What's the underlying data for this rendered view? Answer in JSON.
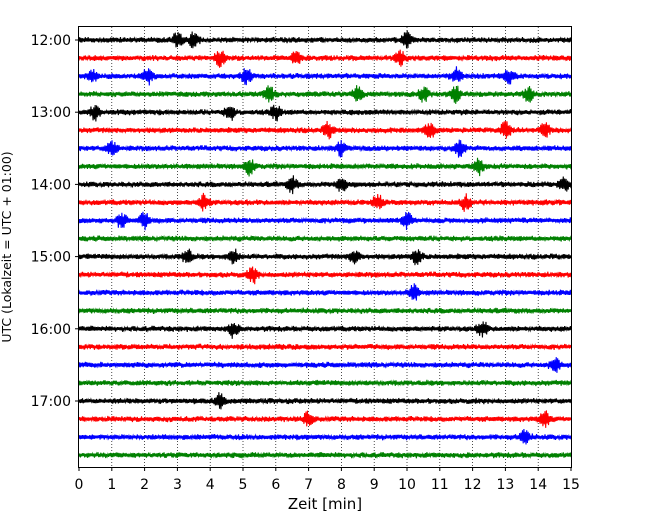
{
  "chart_data": {
    "type": "line",
    "title": "",
    "xlabel": "Zeit  [min]",
    "ylabel": "UTC (Lokalzeit = UTC + 01:00)",
    "xlim": [
      0,
      15
    ],
    "x_ticks": [
      "0",
      "1",
      "2",
      "3",
      "4",
      "5",
      "6",
      "7",
      "8",
      "9",
      "10",
      "11",
      "12",
      "13",
      "14",
      "15"
    ],
    "y_tick_labels": [
      "12:00",
      "13:00",
      "14:00",
      "15:00",
      "16:00",
      "17:00"
    ],
    "grid_x": true,
    "grid_style": "dotted",
    "trace_colors": [
      "#000000",
      "#ff0000",
      "#0000ff",
      "#008000"
    ],
    "row_minutes": 15,
    "rows": [
      {
        "start": "12:00",
        "bursts": [
          3.0,
          3.5,
          10.0
        ]
      },
      {
        "start": "12:15",
        "bursts": [
          4.3,
          6.6,
          9.8
        ]
      },
      {
        "start": "12:30",
        "bursts": [
          0.4,
          2.1,
          5.1,
          11.5,
          13.1
        ]
      },
      {
        "start": "12:45",
        "bursts": [
          5.8,
          8.5,
          10.5,
          11.5,
          13.7
        ]
      },
      {
        "start": "13:00",
        "bursts": [
          0.5,
          4.6,
          6.0
        ]
      },
      {
        "start": "13:15",
        "bursts": [
          7.6,
          10.7,
          13.0,
          14.2
        ]
      },
      {
        "start": "13:30",
        "bursts": [
          1.0,
          8.0,
          11.6
        ]
      },
      {
        "start": "13:45",
        "bursts": [
          5.2,
          12.2
        ]
      },
      {
        "start": "14:00",
        "bursts": [
          6.5,
          8.0,
          14.8
        ]
      },
      {
        "start": "14:15",
        "bursts": [
          3.8,
          9.1,
          11.8
        ]
      },
      {
        "start": "14:30",
        "bursts": [
          1.3,
          2.0,
          10.0
        ]
      },
      {
        "start": "14:45",
        "bursts": []
      },
      {
        "start": "15:00",
        "bursts": [
          3.3,
          4.7,
          8.4,
          10.3
        ]
      },
      {
        "start": "15:15",
        "bursts": [
          5.3
        ]
      },
      {
        "start": "15:30",
        "bursts": [
          10.2
        ]
      },
      {
        "start": "15:45",
        "bursts": []
      },
      {
        "start": "16:00",
        "bursts": [
          4.7,
          12.3
        ]
      },
      {
        "start": "16:15",
        "bursts": []
      },
      {
        "start": "16:30",
        "bursts": [
          14.5
        ]
      },
      {
        "start": "16:45",
        "bursts": []
      },
      {
        "start": "17:00",
        "bursts": [
          4.3
        ]
      },
      {
        "start": "17:15",
        "bursts": [
          7.0,
          14.2
        ]
      },
      {
        "start": "17:30",
        "bursts": [
          13.6
        ]
      },
      {
        "start": "17:45",
        "bursts": []
      }
    ]
  }
}
